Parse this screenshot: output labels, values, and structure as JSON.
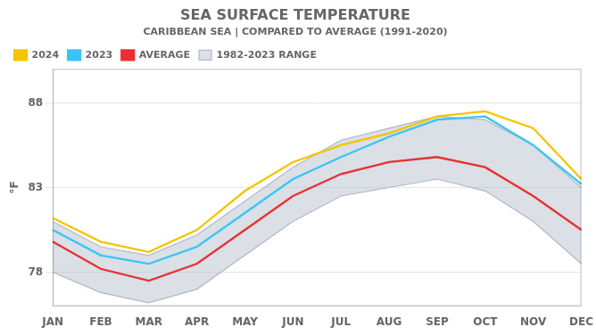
{
  "chart_data": {
    "type": "line",
    "title": "SEA SURFACE TEMPERATURE",
    "subtitle": "CARIBBEAN SEA | COMPARED TO AVERAGE (1991-2020)",
    "y_label": "°F",
    "categories": [
      "JAN",
      "FEB",
      "MAR",
      "APR",
      "MAY",
      "JUN",
      "JUL",
      "AUG",
      "SEP",
      "OCT",
      "NOV",
      "DEC"
    ],
    "series": [
      {
        "name": "2024",
        "color": "#f5c400",
        "values": [
          81.2,
          79.8,
          79.2,
          80.5,
          82.8,
          84.5,
          85.5,
          86.2,
          87.2,
          87.5,
          86.5,
          83.5
        ]
      },
      {
        "name": "2023",
        "color": "#38c5f5",
        "values": [
          80.5,
          79.0,
          78.5,
          79.5,
          81.5,
          83.5,
          84.8,
          86.0,
          87.0,
          87.2,
          85.5,
          83.2
        ]
      },
      {
        "name": "AVERAGE",
        "color": "#e83030",
        "values": [
          79.8,
          78.2,
          77.5,
          78.5,
          80.5,
          82.5,
          83.8,
          84.5,
          84.8,
          84.2,
          82.5,
          80.5
        ]
      },
      {
        "name": "1982-2023 RANGE",
        "type": "range",
        "color": "#b0b8c8",
        "upper": [
          81.0,
          79.5,
          79.0,
          80.2,
          82.2,
          84.2,
          85.8,
          86.5,
          87.2,
          87.0,
          85.5,
          83.0
        ],
        "lower": [
          78.0,
          76.8,
          76.2,
          77.0,
          79.0,
          81.0,
          82.5,
          83.0,
          83.5,
          82.8,
          81.0,
          78.5
        ]
      }
    ],
    "ylim": [
      76,
      90
    ],
    "yticks": [
      78,
      83,
      88
    ],
    "grid": "y",
    "legend": "upper left"
  }
}
